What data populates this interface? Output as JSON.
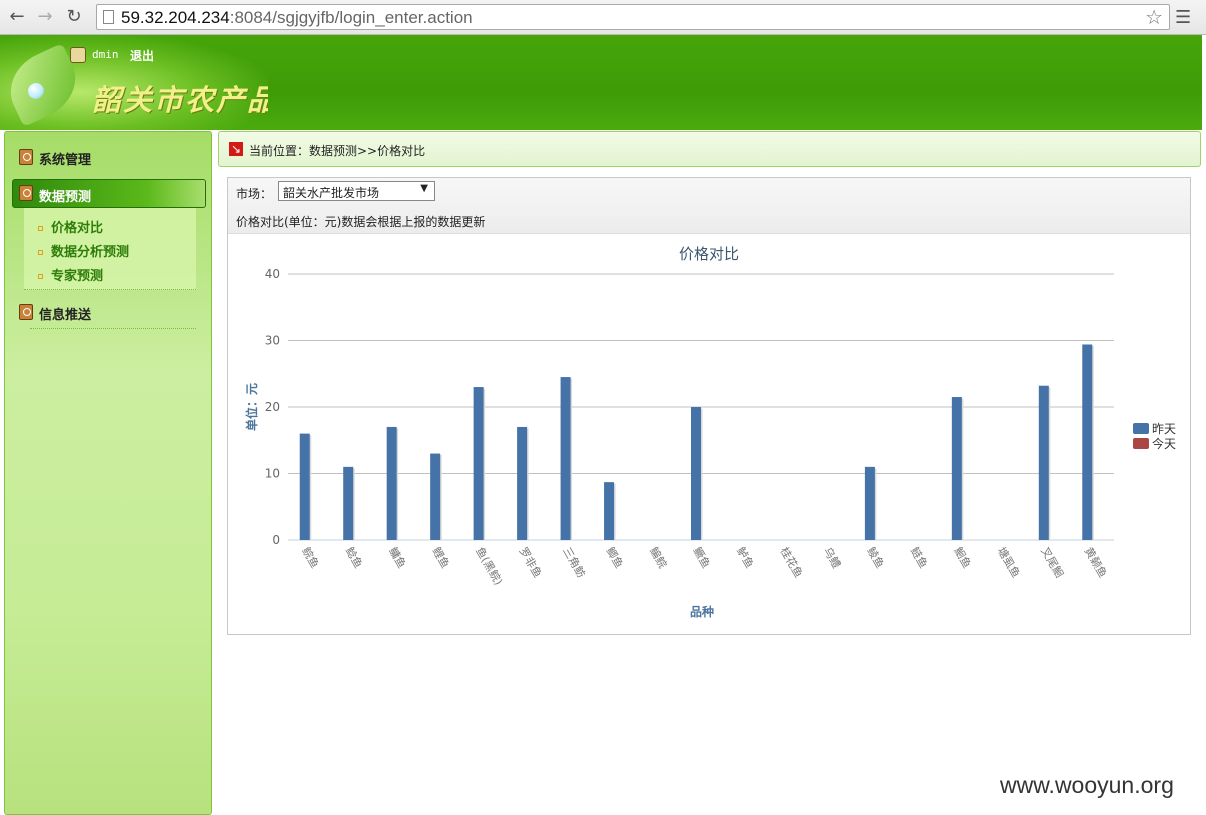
{
  "browser": {
    "url_host": "59.32.204.234",
    "url_rest": ":8084/sgjgyjfb/login_enter.action"
  },
  "header": {
    "user": "dmin",
    "logout": "退出",
    "site_title": "韶关市农产品"
  },
  "sidebar": {
    "items": [
      {
        "label": "系统管理"
      },
      {
        "label": "数据预测"
      },
      {
        "label": "信息推送"
      }
    ],
    "submenu": [
      {
        "label": "价格对比"
      },
      {
        "label": "数据分析预测"
      },
      {
        "label": "专家预测"
      }
    ]
  },
  "breadcrumb": "当前位置：数据预测>>价格对比",
  "filter": {
    "market_label": "市场：",
    "market_value": "韶关水产批发市场",
    "note": "价格对比(单位：元)数据会根据上报的数据更新"
  },
  "chart_data": {
    "type": "bar",
    "title": "价格对比",
    "xlabel": "品种",
    "ylabel": "单位：元",
    "ylim": [
      0,
      40
    ],
    "yticks": [
      0,
      10,
      20,
      30,
      40
    ],
    "categories": [
      "鲩鱼",
      "鲶鱼",
      "鳙鱼",
      "鲤鱼",
      "鱼(黑鲩)",
      "罗非鱼",
      "三角鲂",
      "鲫鱼",
      "鳊鲩",
      "鳜鱼",
      "鲈鱼",
      "桂花鱼",
      "乌鳢",
      "鲮鱼",
      "鲢鱼",
      "鮰鱼",
      "塘虱鱼",
      "叉尾鮰",
      "黄颡鱼"
    ],
    "series": [
      {
        "name": "昨天",
        "color": "#4572a7",
        "values": [
          16,
          11,
          17,
          13,
          23,
          17,
          24.5,
          8.7,
          null,
          20,
          null,
          null,
          null,
          11,
          null,
          21.5,
          null,
          23.2,
          29.4
        ]
      },
      {
        "name": "今天",
        "color": "#aa4643",
        "values": [
          null,
          null,
          null,
          null,
          null,
          null,
          null,
          null,
          null,
          null,
          null,
          null,
          null,
          null,
          null,
          null,
          null,
          null,
          null
        ]
      }
    ],
    "grid": true,
    "legend_position": "right"
  },
  "watermark": "www.wooyun.org"
}
